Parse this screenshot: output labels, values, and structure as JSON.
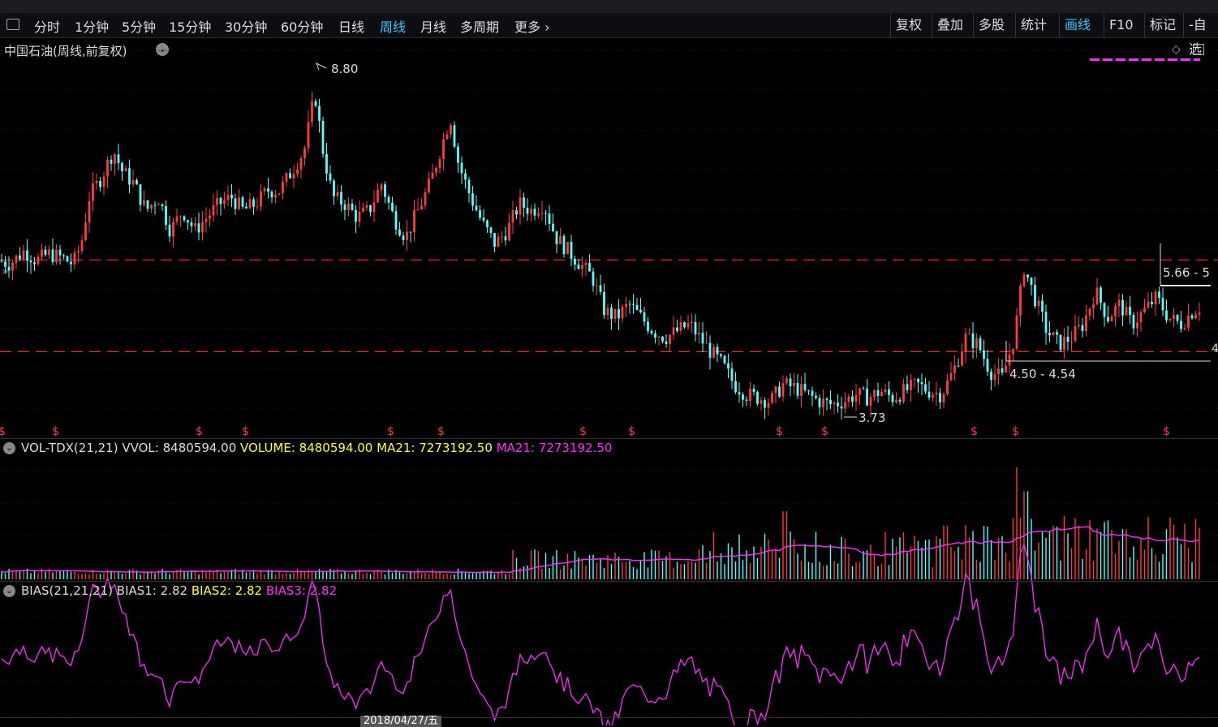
{
  "toolbar": {
    "tabs": [
      "分时",
      "1分钟",
      "5分钟",
      "15分钟",
      "30分钟",
      "60分钟",
      "日线",
      "周线",
      "月线",
      "多周期",
      "更多"
    ],
    "active_tab": "周线",
    "right_buttons": [
      "复权",
      "叠加",
      "多股",
      "统计",
      "画线",
      "F10",
      "标记",
      "-自选"
    ],
    "active_right": "画线"
  },
  "main": {
    "title": "中国石油(周线,前复权)",
    "high_label": "8.80",
    "low_label": "3.73",
    "range_label_1": "5.66 - 5",
    "range_label_2": "4.50 - 4.54",
    "right_edge_value": "4"
  },
  "volume_panel": {
    "label_name": "VOL-TDX(21,21)",
    "vvol": "VVOL: 8480594.00",
    "volume": "VOLUME: 8480594.00",
    "ma21a": "MA21: 7273192.50",
    "ma21b": "MA21: 7273192.50"
  },
  "bias_panel": {
    "label_name": "BIAS(21,21,21)",
    "bias1": "BIAS1: 2.82",
    "bias2": "BIAS2: 2.82",
    "bias3": "BIAS3: 2.82"
  },
  "bottom_axis": {
    "date_label": "2018/04/27/五"
  },
  "colors": {
    "up": "#ff3b3b",
    "down": "#54ffff",
    "magenta": "#ff2dff",
    "yellow": "#ffff33",
    "support": "#ff2020"
  },
  "chart_data": {
    "type": "candlestick",
    "ylim": [
      3.6,
      8.9
    ],
    "price_keypoints": [
      [
        0,
        5.95
      ],
      [
        12,
        5.9
      ],
      [
        30,
        6.1
      ],
      [
        45,
        5.95
      ],
      [
        60,
        6.05
      ],
      [
        75,
        6.0
      ],
      [
        90,
        5.9
      ],
      [
        100,
        6.2
      ],
      [
        110,
        6.9
      ],
      [
        125,
        7.2
      ],
      [
        140,
        7.6
      ],
      [
        150,
        7.3
      ],
      [
        165,
        7.1
      ],
      [
        180,
        6.7
      ],
      [
        195,
        6.9
      ],
      [
        210,
        6.4
      ],
      [
        225,
        6.7
      ],
      [
        240,
        6.4
      ],
      [
        255,
        6.6
      ],
      [
        270,
        6.8
      ],
      [
        285,
        6.9
      ],
      [
        300,
        6.7
      ],
      [
        315,
        6.8
      ],
      [
        330,
        7.0
      ],
      [
        345,
        7.0
      ],
      [
        360,
        7.3
      ],
      [
        375,
        7.6
      ],
      [
        388,
        8.45
      ],
      [
        398,
        7.6
      ],
      [
        410,
        6.9
      ],
      [
        425,
        6.8
      ],
      [
        440,
        6.6
      ],
      [
        455,
        6.7
      ],
      [
        470,
        7.1
      ],
      [
        485,
        6.6
      ],
      [
        500,
        6.3
      ],
      [
        515,
        6.7
      ],
      [
        530,
        7.1
      ],
      [
        545,
        7.7
      ],
      [
        555,
        8.1
      ],
      [
        565,
        7.4
      ],
      [
        580,
        6.9
      ],
      [
        595,
        6.5
      ],
      [
        610,
        6.2
      ],
      [
        625,
        6.4
      ],
      [
        640,
        6.8
      ],
      [
        655,
        6.7
      ],
      [
        670,
        6.8
      ],
      [
        685,
        6.3
      ],
      [
        700,
        6.1
      ],
      [
        715,
        5.9
      ],
      [
        730,
        5.7
      ],
      [
        745,
        5.2
      ],
      [
        760,
        5.1
      ],
      [
        775,
        5.3
      ],
      [
        790,
        5.1
      ],
      [
        805,
        4.9
      ],
      [
        820,
        4.8
      ],
      [
        835,
        4.9
      ],
      [
        850,
        5.0
      ],
      [
        862,
        4.8
      ],
      [
        875,
        4.6
      ],
      [
        890,
        4.4
      ],
      [
        905,
        4.1
      ],
      [
        920,
        3.95
      ],
      [
        935,
        3.9
      ],
      [
        950,
        3.85
      ],
      [
        965,
        4.1
      ],
      [
        980,
        4.05
      ],
      [
        995,
        3.95
      ],
      [
        1010,
        3.85
      ],
      [
        1025,
        3.8
      ],
      [
        1040,
        3.85
      ],
      [
        1055,
        3.95
      ],
      [
        1070,
        3.9
      ],
      [
        1085,
        4.0
      ],
      [
        1100,
        3.9
      ],
      [
        1115,
        4.0
      ],
      [
        1130,
        4.1
      ],
      [
        1145,
        4.0
      ],
      [
        1160,
        3.95
      ],
      [
        1175,
        4.3
      ],
      [
        1190,
        4.8
      ],
      [
        1205,
        4.7
      ],
      [
        1220,
        4.3
      ],
      [
        1235,
        4.2
      ],
      [
        1250,
        4.8
      ],
      [
        1262,
        5.85
      ],
      [
        1275,
        5.4
      ],
      [
        1290,
        4.9
      ],
      [
        1305,
        4.7
      ],
      [
        1320,
        4.8
      ],
      [
        1335,
        5.0
      ],
      [
        1350,
        5.5
      ],
      [
        1365,
        5.1
      ],
      [
        1380,
        5.3
      ],
      [
        1395,
        5.0
      ],
      [
        1410,
        5.2
      ],
      [
        1425,
        5.4
      ],
      [
        1440,
        5.1
      ],
      [
        1455,
        5.0
      ],
      [
        1470,
        5.2
      ],
      [
        1478,
        5.25
      ]
    ],
    "support_lines": [
      5.96,
      4.59
    ],
    "s_markers_x": [
      2,
      68,
      245,
      302,
      481,
      543,
      718,
      778,
      960,
      1016,
      1200,
      1251,
      1437
    ],
    "volume_ylim": [
      0,
      30000000
    ],
    "bias_ylim": [
      -12,
      12
    ]
  }
}
